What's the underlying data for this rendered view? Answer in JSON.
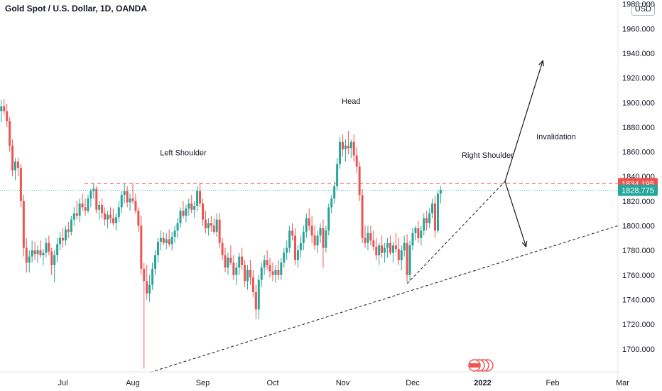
{
  "header": {
    "title": "Gold Spot / U.S. Dollar, 1D, OANDA",
    "currency_button": "USD"
  },
  "chart_data": {
    "type": "candlestick",
    "title": "Gold Spot / U.S. Dollar, 1D, OANDA",
    "y_axis": {
      "range": [
        1682,
        1990
      ],
      "tick_labels": [
        "1980.000",
        "1960.000",
        "1940.000",
        "1920.000",
        "1900.000",
        "1880.000",
        "1860.000",
        "1840.000",
        "1820.000",
        "1800.000",
        "1780.000",
        "1760.000",
        "1740.000",
        "1720.000",
        "1700.000"
      ],
      "tick_values": [
        1980,
        1960,
        1940,
        1920,
        1900,
        1880,
        1860,
        1840,
        1820,
        1800,
        1780,
        1760,
        1740,
        1720,
        1700
      ]
    },
    "x_axis": {
      "labels": [
        "Jul",
        "Aug",
        "Sep",
        "Oct",
        "Nov",
        "Dec",
        "2022",
        "Feb",
        "Mar"
      ]
    },
    "month_index": {
      "Jun": 0,
      "Jul": 1,
      "Aug": 2,
      "Sep": 3,
      "Oct": 4,
      "Nov": 5,
      "Dec": 6,
      "2022": 7,
      "Feb": 8,
      "Mar": 9
    },
    "ohlc": [
      [
        0.0,
        1903,
        1905,
        1880,
        1885
      ],
      [
        0.04,
        1886,
        1903,
        1879,
        1899
      ],
      [
        0.08,
        1899,
        1900,
        1890,
        1893
      ],
      [
        0.12,
        1893,
        1902,
        1884,
        1897
      ],
      [
        0.16,
        1897,
        1903,
        1890,
        1893
      ],
      [
        0.2,
        1893,
        1899,
        1880,
        1885
      ],
      [
        0.24,
        1885,
        1888,
        1860,
        1865
      ],
      [
        0.28,
        1865,
        1870,
        1840,
        1845
      ],
      [
        0.32,
        1845,
        1855,
        1837,
        1852
      ],
      [
        0.36,
        1852,
        1855,
        1840,
        1847
      ],
      [
        0.4,
        1847,
        1850,
        1815,
        1820
      ],
      [
        0.44,
        1820,
        1825,
        1775,
        1782
      ],
      [
        0.48,
        1782,
        1790,
        1762,
        1770
      ],
      [
        0.52,
        1770,
        1780,
        1762,
        1775
      ],
      [
        0.56,
        1775,
        1788,
        1770,
        1780
      ],
      [
        0.6,
        1780,
        1787,
        1772,
        1777
      ],
      [
        0.64,
        1777,
        1784,
        1770,
        1780
      ],
      [
        0.68,
        1780,
        1788,
        1774,
        1776
      ],
      [
        0.72,
        1776,
        1781,
        1768,
        1778
      ],
      [
        0.76,
        1778,
        1790,
        1774,
        1786
      ],
      [
        0.8,
        1786,
        1792,
        1776,
        1779
      ],
      [
        0.84,
        1779,
        1782,
        1760,
        1768
      ],
      [
        0.88,
        1768,
        1780,
        1754,
        1776
      ],
      [
        0.92,
        1776,
        1790,
        1770,
        1785
      ],
      [
        0.96,
        1785,
        1795,
        1780,
        1790
      ],
      [
        1.0,
        1790,
        1798,
        1782,
        1788
      ],
      [
        1.04,
        1788,
        1800,
        1784,
        1797
      ],
      [
        1.08,
        1797,
        1803,
        1790,
        1795
      ],
      [
        1.12,
        1795,
        1808,
        1792,
        1805
      ],
      [
        1.16,
        1805,
        1815,
        1800,
        1810
      ],
      [
        1.2,
        1810,
        1820,
        1805,
        1808
      ],
      [
        1.24,
        1808,
        1822,
        1803,
        1818
      ],
      [
        1.28,
        1818,
        1826,
        1812,
        1815
      ],
      [
        1.32,
        1815,
        1822,
        1808,
        1812
      ],
      [
        1.36,
        1812,
        1825,
        1810,
        1822
      ],
      [
        1.4,
        1822,
        1830,
        1815,
        1828
      ],
      [
        1.44,
        1828,
        1834,
        1822,
        1830
      ],
      [
        1.48,
        1830,
        1832,
        1810,
        1813
      ],
      [
        1.52,
        1813,
        1820,
        1805,
        1817
      ],
      [
        1.56,
        1817,
        1822,
        1806,
        1810
      ],
      [
        1.6,
        1810,
        1815,
        1800,
        1805
      ],
      [
        1.64,
        1805,
        1812,
        1798,
        1809
      ],
      [
        1.68,
        1809,
        1815,
        1802,
        1806
      ],
      [
        1.72,
        1806,
        1814,
        1800,
        1802
      ],
      [
        1.76,
        1802,
        1810,
        1796,
        1807
      ],
      [
        1.8,
        1807,
        1820,
        1803,
        1815
      ],
      [
        1.84,
        1815,
        1828,
        1810,
        1825
      ],
      [
        1.88,
        1825,
        1834,
        1818,
        1828
      ],
      [
        1.92,
        1828,
        1832,
        1815,
        1819
      ],
      [
        1.96,
        1819,
        1826,
        1812,
        1822
      ],
      [
        2.0,
        1822,
        1834,
        1818,
        1820
      ],
      [
        2.04,
        1820,
        1826,
        1810,
        1812
      ],
      [
        2.08,
        1812,
        1815,
        1795,
        1800
      ],
      [
        2.12,
        1800,
        1808,
        1760,
        1765
      ],
      [
        2.16,
        1765,
        1770,
        1684,
        1755
      ],
      [
        2.2,
        1755,
        1768,
        1740,
        1745
      ],
      [
        2.24,
        1745,
        1760,
        1738,
        1752
      ],
      [
        2.28,
        1752,
        1770,
        1748,
        1765
      ],
      [
        2.32,
        1765,
        1780,
        1760,
        1776
      ],
      [
        2.36,
        1776,
        1790,
        1770,
        1787
      ],
      [
        2.4,
        1787,
        1796,
        1780,
        1790
      ],
      [
        2.44,
        1790,
        1795,
        1784,
        1786
      ],
      [
        2.48,
        1786,
        1794,
        1781,
        1789
      ],
      [
        2.52,
        1789,
        1797,
        1783,
        1785
      ],
      [
        2.56,
        1785,
        1795,
        1780,
        1791
      ],
      [
        2.6,
        1791,
        1800,
        1786,
        1796
      ],
      [
        2.64,
        1796,
        1806,
        1790,
        1802
      ],
      [
        2.68,
        1802,
        1815,
        1798,
        1812
      ],
      [
        2.72,
        1812,
        1820,
        1806,
        1808
      ],
      [
        2.76,
        1808,
        1817,
        1803,
        1814
      ],
      [
        2.8,
        1814,
        1822,
        1808,
        1818
      ],
      [
        2.84,
        1818,
        1825,
        1810,
        1813
      ],
      [
        2.88,
        1813,
        1820,
        1806,
        1816
      ],
      [
        2.92,
        1816,
        1832,
        1812,
        1828
      ],
      [
        2.96,
        1828,
        1835,
        1815,
        1818
      ],
      [
        3.0,
        1818,
        1822,
        1800,
        1805
      ],
      [
        3.04,
        1805,
        1812,
        1794,
        1798
      ],
      [
        3.08,
        1798,
        1806,
        1792,
        1802
      ],
      [
        3.12,
        1802,
        1808,
        1795,
        1800
      ],
      [
        3.16,
        1800,
        1806,
        1793,
        1795
      ],
      [
        3.2,
        1795,
        1810,
        1791,
        1805
      ],
      [
        3.24,
        1805,
        1810,
        1782,
        1786
      ],
      [
        3.28,
        1786,
        1790,
        1772,
        1776
      ],
      [
        3.32,
        1776,
        1782,
        1762,
        1766
      ],
      [
        3.36,
        1766,
        1778,
        1760,
        1774
      ],
      [
        3.4,
        1774,
        1784,
        1768,
        1770
      ],
      [
        3.44,
        1770,
        1776,
        1756,
        1760
      ],
      [
        3.48,
        1760,
        1770,
        1752,
        1766
      ],
      [
        3.52,
        1766,
        1778,
        1760,
        1775
      ],
      [
        3.56,
        1775,
        1782,
        1764,
        1768
      ],
      [
        3.6,
        1768,
        1772,
        1750,
        1755
      ],
      [
        3.64,
        1755,
        1768,
        1748,
        1764
      ],
      [
        3.68,
        1764,
        1772,
        1752,
        1758
      ],
      [
        3.72,
        1758,
        1764,
        1742,
        1746
      ],
      [
        3.76,
        1746,
        1752,
        1724,
        1732
      ],
      [
        3.8,
        1732,
        1760,
        1724,
        1756
      ],
      [
        3.84,
        1756,
        1770,
        1750,
        1766
      ],
      [
        3.88,
        1766,
        1776,
        1760,
        1772
      ],
      [
        3.92,
        1772,
        1780,
        1764,
        1768
      ],
      [
        3.96,
        1768,
        1774,
        1758,
        1763
      ],
      [
        4.0,
        1763,
        1770,
        1755,
        1760
      ],
      [
        4.04,
        1760,
        1768,
        1754,
        1764
      ],
      [
        4.08,
        1764,
        1772,
        1756,
        1760
      ],
      [
        4.12,
        1760,
        1774,
        1756,
        1770
      ],
      [
        4.16,
        1770,
        1782,
        1766,
        1778
      ],
      [
        4.2,
        1778,
        1788,
        1772,
        1782
      ],
      [
        4.24,
        1782,
        1800,
        1778,
        1796
      ],
      [
        4.28,
        1796,
        1802,
        1788,
        1792
      ],
      [
        4.32,
        1792,
        1798,
        1768,
        1772
      ],
      [
        4.36,
        1772,
        1784,
        1766,
        1780
      ],
      [
        4.4,
        1780,
        1792,
        1774,
        1786
      ],
      [
        4.44,
        1786,
        1800,
        1780,
        1795
      ],
      [
        4.48,
        1795,
        1810,
        1790,
        1806
      ],
      [
        4.52,
        1806,
        1814,
        1796,
        1800
      ],
      [
        4.56,
        1800,
        1808,
        1786,
        1792
      ],
      [
        4.6,
        1792,
        1800,
        1780,
        1784
      ],
      [
        4.64,
        1784,
        1796,
        1778,
        1792
      ],
      [
        4.68,
        1792,
        1802,
        1786,
        1798
      ],
      [
        4.72,
        1798,
        1805,
        1766,
        1782
      ],
      [
        4.76,
        1782,
        1800,
        1778,
        1796
      ],
      [
        4.8,
        1796,
        1818,
        1792,
        1815
      ],
      [
        4.84,
        1815,
        1825,
        1810,
        1822
      ],
      [
        4.88,
        1822,
        1836,
        1818,
        1832
      ],
      [
        4.92,
        1832,
        1855,
        1828,
        1850
      ],
      [
        4.96,
        1850,
        1872,
        1846,
        1868
      ],
      [
        5.0,
        1868,
        1874,
        1856,
        1862
      ],
      [
        5.04,
        1862,
        1870,
        1852,
        1865
      ],
      [
        5.08,
        1865,
        1877,
        1858,
        1863
      ],
      [
        5.12,
        1863,
        1870,
        1855,
        1868
      ],
      [
        5.16,
        1868,
        1874,
        1852,
        1857
      ],
      [
        5.2,
        1857,
        1864,
        1843,
        1848
      ],
      [
        5.24,
        1848,
        1852,
        1820,
        1825
      ],
      [
        5.28,
        1825,
        1830,
        1786,
        1790
      ],
      [
        5.32,
        1790,
        1800,
        1782,
        1786
      ],
      [
        5.36,
        1786,
        1800,
        1780,
        1794
      ],
      [
        5.4,
        1794,
        1800,
        1784,
        1788
      ],
      [
        5.44,
        1788,
        1796,
        1780,
        1783
      ],
      [
        5.48,
        1783,
        1790,
        1772,
        1776
      ],
      [
        5.52,
        1776,
        1786,
        1768,
        1784
      ],
      [
        5.56,
        1784,
        1792,
        1774,
        1778
      ],
      [
        5.6,
        1778,
        1786,
        1770,
        1782
      ],
      [
        5.64,
        1782,
        1790,
        1774,
        1786
      ],
      [
        5.68,
        1786,
        1792,
        1776,
        1778
      ],
      [
        5.72,
        1778,
        1787,
        1770,
        1784
      ],
      [
        5.76,
        1784,
        1794,
        1778,
        1781
      ],
      [
        5.8,
        1781,
        1790,
        1768,
        1772
      ],
      [
        5.84,
        1772,
        1784,
        1764,
        1780
      ],
      [
        5.88,
        1780,
        1792,
        1775,
        1786
      ],
      [
        5.92,
        1786,
        1793,
        1754,
        1760
      ],
      [
        5.96,
        1760,
        1788,
        1755,
        1784
      ],
      [
        6.0,
        1784,
        1798,
        1780,
        1794
      ],
      [
        6.04,
        1794,
        1800,
        1788,
        1798
      ],
      [
        6.08,
        1798,
        1804,
        1786,
        1790
      ],
      [
        6.12,
        1790,
        1800,
        1784,
        1796
      ],
      [
        6.16,
        1796,
        1810,
        1792,
        1806
      ],
      [
        6.2,
        1806,
        1812,
        1796,
        1802
      ],
      [
        6.24,
        1802,
        1814,
        1798,
        1810
      ],
      [
        6.28,
        1810,
        1822,
        1806,
        1818
      ],
      [
        6.32,
        1818,
        1824,
        1790,
        1796
      ],
      [
        6.36,
        1796,
        1828,
        1794,
        1826
      ],
      [
        6.4,
        1826,
        1832,
        1818,
        1829
      ]
    ],
    "horizontal_lines": [
      {
        "price": 1834.195,
        "label": "1834.195",
        "color": "#ef5350",
        "style": "dashed"
      },
      {
        "price": 1828.775,
        "label": "1828.775",
        "color": "#26a69a",
        "style": "dotted"
      }
    ],
    "trend_lines": [
      {
        "from": [
          2.25,
          1681
        ],
        "to": [
          9.05,
          1800
        ],
        "style": "dashed"
      },
      {
        "from": [
          5.92,
          1753
        ],
        "to": [
          7.32,
          1836
        ],
        "style": "dashed"
      }
    ],
    "arrows": [
      {
        "from": [
          7.32,
          1836
        ],
        "to": [
          7.86,
          1934
        ]
      },
      {
        "from": [
          7.32,
          1836
        ],
        "to": [
          7.62,
          1783
        ]
      }
    ],
    "annotations": [
      {
        "text": "Head",
        "at": [
          5.12,
          1899
        ]
      },
      {
        "text": "Left Shoulder",
        "at": [
          2.72,
          1857
        ]
      },
      {
        "text": "Right Shoulder",
        "at": [
          7.07,
          1855
        ]
      },
      {
        "text": "Invalidation",
        "at": [
          8.05,
          1870
        ]
      }
    ],
    "colors": {
      "up": "#26a69a",
      "down": "#ef5350",
      "axis_line": "#e0e3eb",
      "text": "#131722"
    },
    "grid": false
  }
}
